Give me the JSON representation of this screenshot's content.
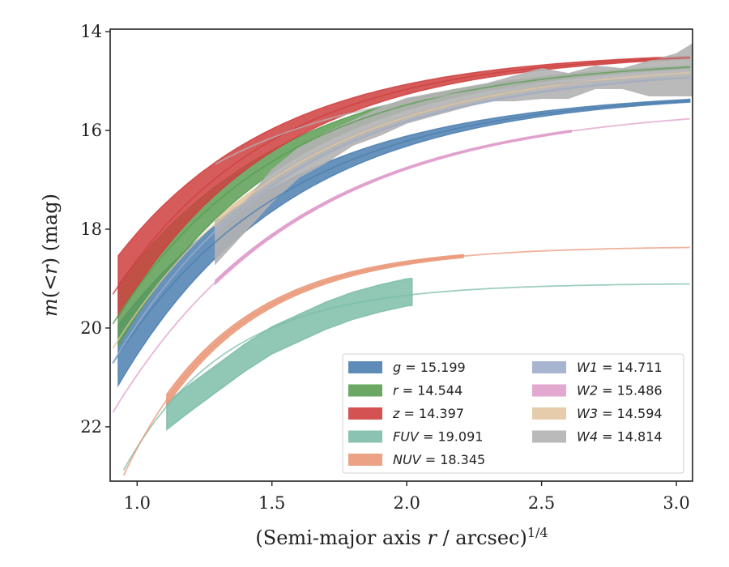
{
  "chart_data": {
    "type": "line",
    "xlabel": "(Semi-major axis r / arcsec)^1/4",
    "xlabel_parts": {
      "prefix": "(Semi-major axis ",
      "var": "r",
      "mid": " / arcsec)",
      "sup": "1/4"
    },
    "ylabel": "m(< r) (mag)",
    "ylabel_parts": {
      "var": "m",
      "open": "(<",
      "var2": "r",
      "close": ") (mag)"
    },
    "xlim": [
      0.9,
      3.06
    ],
    "ylim": [
      23.1,
      13.95
    ],
    "y_inverted": true,
    "xticks": [
      1.0,
      1.5,
      2.0,
      2.5,
      3.0
    ],
    "xtick_labels": [
      "1.0",
      "1.5",
      "2.0",
      "2.5",
      "3.0"
    ],
    "yticks": [
      14,
      16,
      18,
      20,
      22
    ],
    "ytick_labels": [
      "14",
      "16",
      "18",
      "20",
      "22"
    ],
    "grid": false,
    "legend_placement": "lower-right",
    "series": [
      {
        "name": "g",
        "label_value": "= 15.199",
        "total": 15.199,
        "color": "#4c7fb0",
        "model_start": 0.91,
        "model_x0": 20.8,
        "model_k": 1.55,
        "data_start": 0.93,
        "data_end": 3.06,
        "data_width": 1.2,
        "data_offset": 0
      },
      {
        "name": "r",
        "label_value": "= 14.544",
        "total": 14.544,
        "color": "#5a9e52",
        "model_start": 0.91,
        "model_x0": 20.0,
        "model_k": 1.6,
        "data_start": 0.93,
        "data_end": 3.06,
        "data_width": 1.2,
        "data_offset": 0
      },
      {
        "name": "z",
        "label_value": "= 14.397",
        "total": 14.397,
        "color": "#cf3f3f",
        "model_start": 0.91,
        "model_x0": 19.4,
        "model_k": 1.7,
        "data_start": 0.93,
        "data_end": 3.06,
        "data_width": 1.2,
        "data_offset": 0
      },
      {
        "name": "FUV",
        "label_value": "= 19.091",
        "total": 19.091,
        "color": "#7dbda8",
        "model_start": 0.95,
        "model_x0": 23.4,
        "model_k": 2.6,
        "data_start": 1.11,
        "data_end": 2.02,
        "data_width": 0.55,
        "data_offset": -0.25,
        "data_points": [
          [
            1.11,
            21.78
          ],
          [
            1.2,
            21.4
          ],
          [
            1.3,
            21.0
          ],
          [
            1.4,
            20.6
          ],
          [
            1.5,
            20.25
          ],
          [
            1.6,
            20.0
          ],
          [
            1.7,
            19.75
          ],
          [
            1.8,
            19.55
          ],
          [
            1.9,
            19.4
          ],
          [
            2.0,
            19.28
          ],
          [
            2.02,
            19.27
          ]
        ]
      },
      {
        "name": "NUV",
        "label_value": "= 18.345",
        "total": 18.345,
        "color": "#ea9878",
        "model_start": 0.95,
        "model_x0": 23.6,
        "model_k": 2.5,
        "data_start": 1.11,
        "data_end": 2.22,
        "data_width": 0.2,
        "data_offset": 0
      },
      {
        "name": "W1",
        "label_value": "= 14.711",
        "total": 14.711,
        "color": "#9eadcc",
        "model_start": 0.91,
        "model_x0": 20.8,
        "model_k": 1.55,
        "data_start": 1.29,
        "data_end": 3.06,
        "data_width": 0.05,
        "data_offset": 0
      },
      {
        "name": "W2",
        "label_value": "= 15.486",
        "total": 15.486,
        "color": "#df9ecb",
        "model_start": 0.91,
        "model_x0": 21.8,
        "model_k": 1.45,
        "data_start": 1.29,
        "data_end": 2.62,
        "data_width": 0.05,
        "data_offset": 0
      },
      {
        "name": "W3",
        "label_value": "= 14.594",
        "total": 14.594,
        "color": "#e3c7a2",
        "model_start": 0.91,
        "model_x0": 20.5,
        "model_k": 1.5,
        "data_start": 1.29,
        "data_end": 2.62,
        "data_width": 0.1,
        "data_offset": 0
      },
      {
        "name": "W4",
        "label_value": "= 14.814",
        "total": 14.814,
        "color": "#b3b3b3",
        "model_start": 1.29,
        "model_x0": 18.3,
        "model_k": 1.6,
        "data_start": 1.29,
        "data_end": 3.06,
        "data_width": 1.0,
        "data_offset": 0,
        "band_points": [
          [
            1.29,
            17.85,
            18.7
          ],
          [
            1.4,
            17.45,
            18.05
          ],
          [
            1.5,
            16.8,
            17.45
          ],
          [
            1.6,
            16.35,
            16.95
          ],
          [
            1.7,
            16.05,
            16.65
          ],
          [
            1.8,
            15.8,
            16.3
          ],
          [
            1.9,
            15.55,
            16.1
          ],
          [
            2.0,
            15.35,
            15.85
          ],
          [
            2.1,
            15.25,
            15.7
          ],
          [
            2.2,
            15.15,
            15.55
          ],
          [
            2.3,
            15.05,
            15.4
          ],
          [
            2.4,
            14.9,
            15.4
          ],
          [
            2.5,
            14.75,
            15.35
          ],
          [
            2.6,
            14.85,
            15.35
          ],
          [
            2.7,
            14.7,
            15.15
          ],
          [
            2.8,
            14.75,
            15.15
          ],
          [
            2.9,
            14.6,
            15.3
          ],
          [
            3.0,
            14.45,
            15.3
          ],
          [
            3.06,
            14.25,
            15.3
          ]
        ]
      }
    ]
  }
}
